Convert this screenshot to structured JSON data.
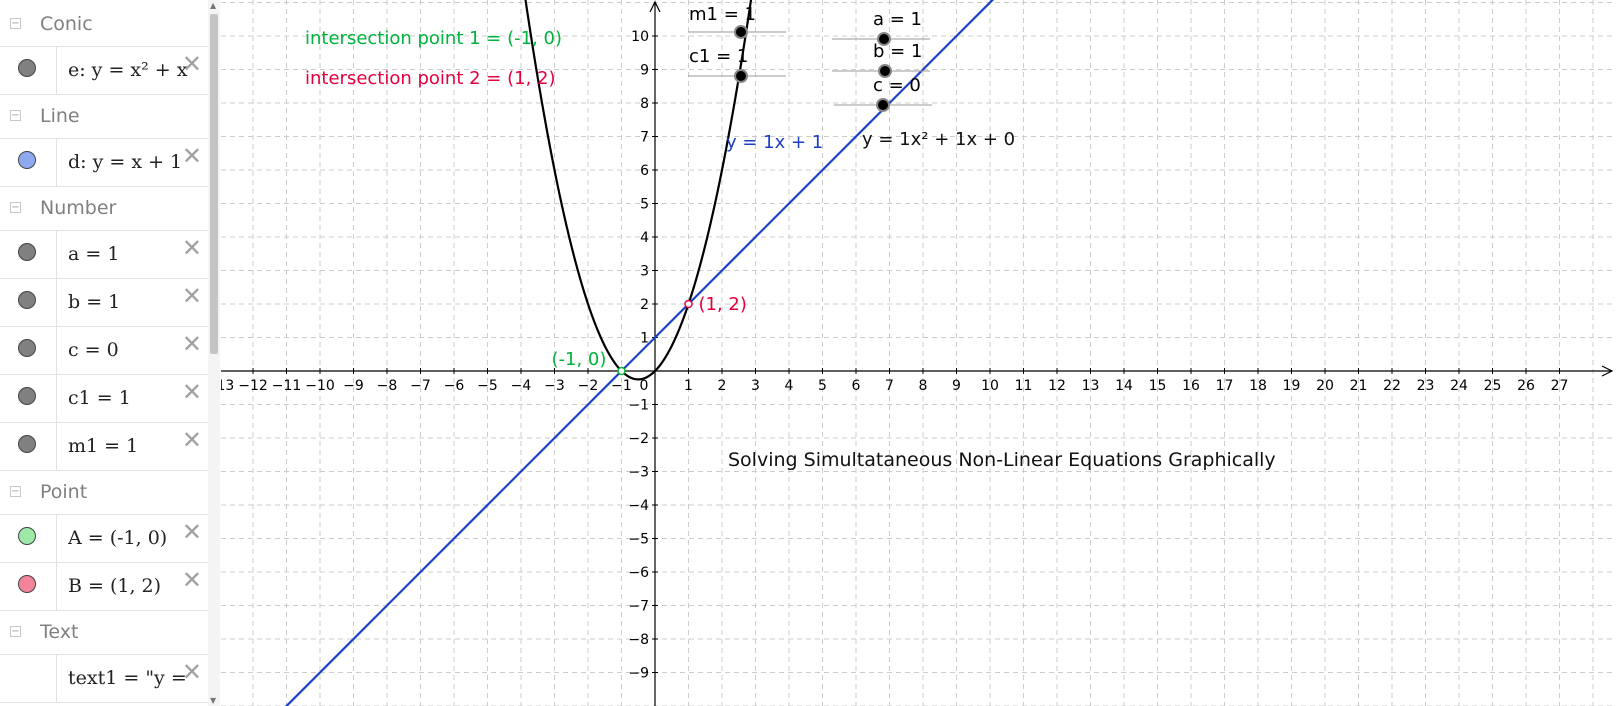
{
  "algebra": {
    "categories": [
      {
        "title": "Conic",
        "toggle": "−",
        "items": [
          {
            "text": "e: y = x² + x",
            "color": "#808080"
          }
        ]
      },
      {
        "title": "Line",
        "toggle": "−",
        "items": [
          {
            "text": "d: y = x + 1",
            "color": "#8fa8f2"
          }
        ]
      },
      {
        "title": "Number",
        "toggle": "−",
        "items": [
          {
            "text": "a = 1",
            "color": "#808080"
          },
          {
            "text": "b = 1",
            "color": "#808080"
          },
          {
            "text": "c = 0",
            "color": "#808080"
          },
          {
            "text": "c1 = 1",
            "color": "#808080"
          },
          {
            "text": "m1 = 1",
            "color": "#808080"
          }
        ]
      },
      {
        "title": "Point",
        "toggle": "−",
        "items": [
          {
            "text": "A = (-1, 0)",
            "color": "#9be8a7"
          },
          {
            "text": "B = (1, 2)",
            "color": "#f4849a"
          }
        ]
      },
      {
        "title": "Text",
        "toggle": "−",
        "items": [
          {
            "text": "text1 = \"y =",
            "color": null
          }
        ]
      }
    ],
    "delete_glyph": "✕"
  },
  "graph": {
    "x_range": [
      -13,
      27
    ],
    "y_range": [
      -9,
      10
    ],
    "conic_label": "e: y = x² + x",
    "line_label": "d: y = x + 1",
    "points": [
      {
        "label": "(-1, 0)",
        "x": -1,
        "y": 0,
        "color": "#00b33c"
      },
      {
        "label": "(1, 2)",
        "x": 1,
        "y": 2,
        "color": "#e5003d"
      }
    ],
    "texts": {
      "intersection1": "intersection point 1 = (-1, 0)",
      "intersection2": "intersection point 2 = (1, 2)",
      "line_eq": "y = 1x + 1",
      "quad_eq": "y = 1x² + 1x + 0",
      "title": "Solving Simultataneous Non-Linear Equations Graphically"
    },
    "sliders": [
      {
        "label": "m1 = 1",
        "value": 1
      },
      {
        "label": "c1 = 1",
        "value": 1
      },
      {
        "label": "a = 1",
        "value": 1
      },
      {
        "label": "b = 1",
        "value": 1
      },
      {
        "label": "c = 0",
        "value": 0
      }
    ],
    "colors": {
      "parabola": "#000000",
      "line": "#1a3ec4",
      "green": "#00b33c",
      "red": "#e5003d",
      "line_eq": "#1a3ec4",
      "grid": "#cccccc"
    }
  }
}
